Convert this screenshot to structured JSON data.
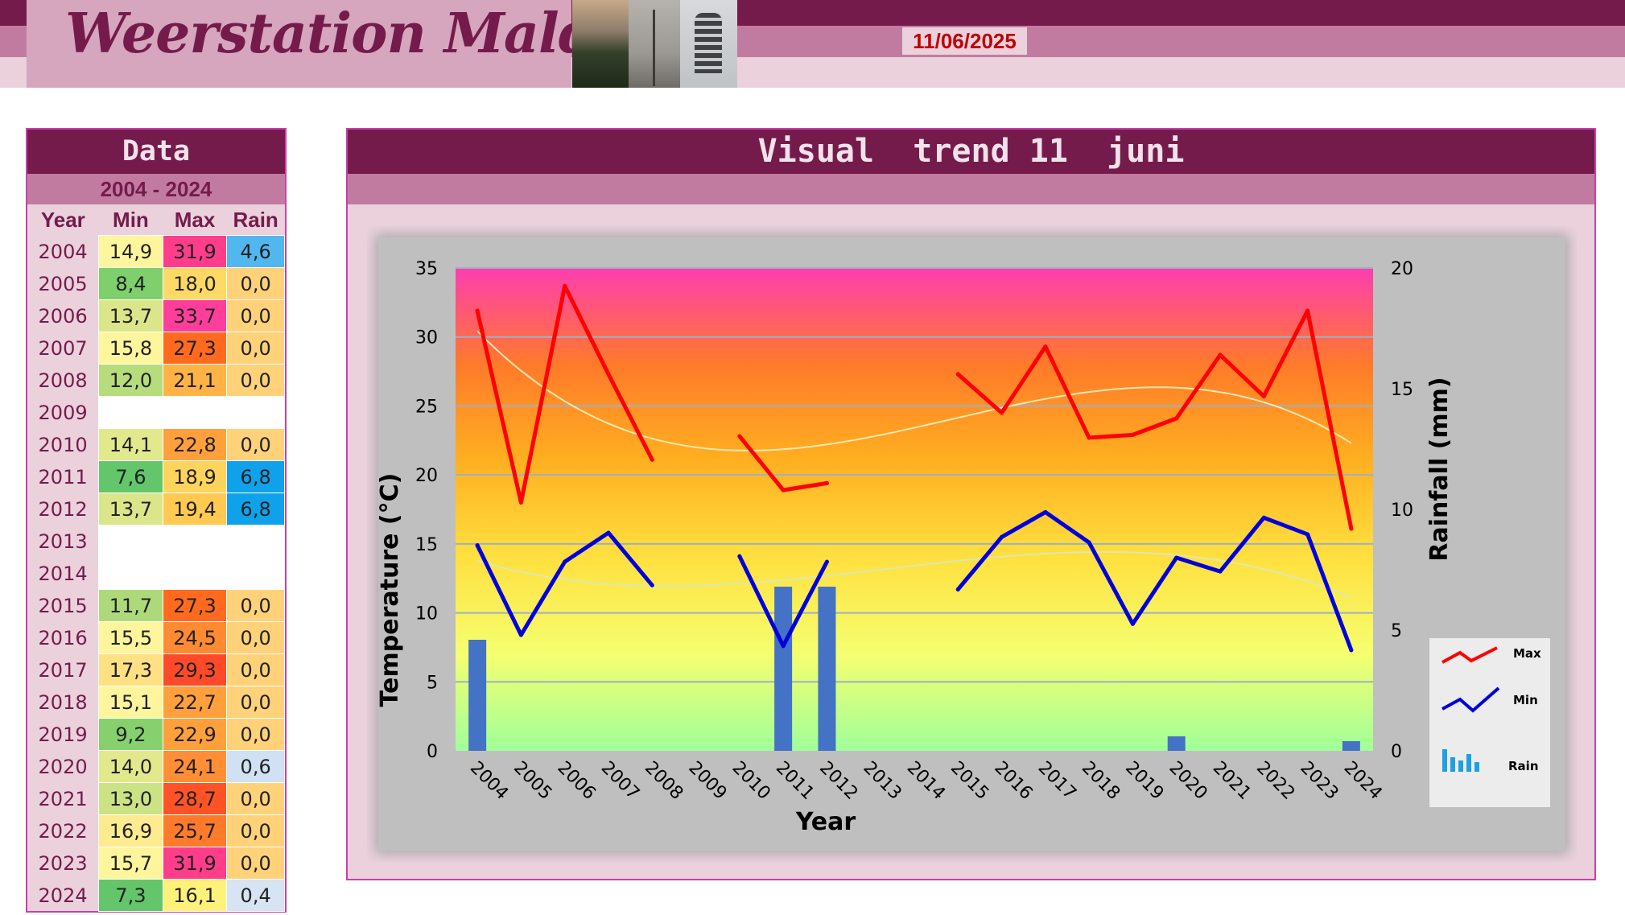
{
  "header": {
    "site_title": "Weerstation Malderen",
    "date": "11/06/2025"
  },
  "data_panel": {
    "title": "Data",
    "range": "2004 - 2024",
    "columns": [
      "Year",
      "Min",
      "Max",
      "Rain"
    ],
    "rows": [
      {
        "year": "2004",
        "min": "14,9",
        "max": "31,9",
        "rain": "4,6",
        "min_color": "#fff59d",
        "max_color": "#ff3d8b",
        "rain_color": "#52b7ee"
      },
      {
        "year": "2005",
        "min": "8,4",
        "max": "18,0",
        "rain": "0,0",
        "min_color": "#7fcf6c",
        "max_color": "#ffd966",
        "rain_color": "#ffd27a"
      },
      {
        "year": "2006",
        "min": "13,7",
        "max": "33,7",
        "rain": "0,0",
        "min_color": "#dbe68a",
        "max_color": "#ff3d9a",
        "rain_color": "#ffd27a"
      },
      {
        "year": "2007",
        "min": "15,8",
        "max": "27,3",
        "rain": "0,0",
        "min_color": "#fff59d",
        "max_color": "#ff6a1f",
        "rain_color": "#ffd27a"
      },
      {
        "year": "2008",
        "min": "12,0",
        "max": "21,1",
        "rain": "0,0",
        "min_color": "#b6dc7c",
        "max_color": "#ffb347",
        "rain_color": "#ffd27a"
      },
      {
        "year": "2009",
        "min": "",
        "max": "",
        "rain": "",
        "min_color": "#ffffff",
        "max_color": "#ffffff",
        "rain_color": "#ffffff"
      },
      {
        "year": "2010",
        "min": "14,1",
        "max": "22,8",
        "rain": "0,0",
        "min_color": "#e2e98d",
        "max_color": "#ffa03c",
        "rain_color": "#ffd27a"
      },
      {
        "year": "2011",
        "min": "7,6",
        "max": "18,9",
        "rain": "6,8",
        "min_color": "#63c66a",
        "max_color": "#ffd45c",
        "rain_color": "#0fa2ea"
      },
      {
        "year": "2012",
        "min": "13,7",
        "max": "19,4",
        "rain": "6,8",
        "min_color": "#dbe68a",
        "max_color": "#ffc952",
        "rain_color": "#0fa2ea"
      },
      {
        "year": "2013",
        "min": "",
        "max": "",
        "rain": "",
        "min_color": "#ffffff",
        "max_color": "#ffffff",
        "rain_color": "#ffffff"
      },
      {
        "year": "2014",
        "min": "",
        "max": "",
        "rain": "",
        "min_color": "#ffffff",
        "max_color": "#ffffff",
        "rain_color": "#ffffff"
      },
      {
        "year": "2015",
        "min": "11,7",
        "max": "27,3",
        "rain": "0,0",
        "min_color": "#aed97a",
        "max_color": "#ff6a1f",
        "rain_color": "#ffd27a"
      },
      {
        "year": "2016",
        "min": "15,5",
        "max": "24,5",
        "rain": "0,0",
        "min_color": "#fff59d",
        "max_color": "#ff8a32",
        "rain_color": "#ffd27a"
      },
      {
        "year": "2017",
        "min": "17,3",
        "max": "29,3",
        "rain": "0,0",
        "min_color": "#ffe082",
        "max_color": "#ff4a2a",
        "rain_color": "#ffd27a"
      },
      {
        "year": "2018",
        "min": "15,1",
        "max": "22,7",
        "rain": "0,0",
        "min_color": "#fff59d",
        "max_color": "#ffa03c",
        "rain_color": "#ffd27a"
      },
      {
        "year": "2019",
        "min": "9,2",
        "max": "22,9",
        "rain": "0,0",
        "min_color": "#86d16d",
        "max_color": "#ffa03c",
        "rain_color": "#ffd27a"
      },
      {
        "year": "2020",
        "min": "14,0",
        "max": "24,1",
        "rain": "0,6",
        "min_color": "#e2e98d",
        "max_color": "#ff8e35",
        "rain_color": "#cfe1f3"
      },
      {
        "year": "2021",
        "min": "13,0",
        "max": "28,7",
        "rain": "0,0",
        "min_color": "#cbe385",
        "max_color": "#ff5327",
        "rain_color": "#ffd27a"
      },
      {
        "year": "2022",
        "min": "16,9",
        "max": "25,7",
        "rain": "0,0",
        "min_color": "#ffeb8f",
        "max_color": "#ff7a2a",
        "rain_color": "#ffd27a"
      },
      {
        "year": "2023",
        "min": "15,7",
        "max": "31,9",
        "rain": "0,0",
        "min_color": "#fff59d",
        "max_color": "#ff3d8b",
        "rain_color": "#ffd27a"
      },
      {
        "year": "2024",
        "min": "7,3",
        "max": "16,1",
        "rain": "0,4",
        "min_color": "#63c66a",
        "max_color": "#fff27a",
        "rain_color": "#d6e4f3"
      }
    ]
  },
  "chart_panel": {
    "title": "Visual  trend 11  juni"
  },
  "chart_data": {
    "type": "line",
    "xlabel": "Year",
    "ylabel": "Temperature (°C)",
    "y2label": "Rainfall (mm)",
    "ylim": [
      0,
      35
    ],
    "y2lim": [
      0,
      20
    ],
    "yticks": [
      0,
      5,
      10,
      15,
      20,
      25,
      30,
      35
    ],
    "y2ticks": [
      0,
      5,
      10,
      15,
      20
    ],
    "categories": [
      "2004",
      "2005",
      "2006",
      "2007",
      "2008",
      "2009",
      "2010",
      "2011",
      "2012",
      "2013",
      "2014",
      "2015",
      "2016",
      "2017",
      "2018",
      "2019",
      "2020",
      "2021",
      "2022",
      "2023",
      "2024"
    ],
    "series": [
      {
        "name": "Max",
        "type": "line",
        "axis": "left",
        "color": "#ff0000",
        "values": [
          31.9,
          18.0,
          33.7,
          27.3,
          21.1,
          null,
          22.8,
          18.9,
          19.4,
          null,
          null,
          27.3,
          24.5,
          29.3,
          22.7,
          22.9,
          24.1,
          28.7,
          25.7,
          31.9,
          16.1
        ]
      },
      {
        "name": "Min",
        "type": "line",
        "axis": "left",
        "color": "#0000dd",
        "values": [
          14.9,
          8.4,
          13.7,
          15.8,
          12.0,
          null,
          14.1,
          7.6,
          13.7,
          null,
          null,
          11.7,
          15.5,
          17.3,
          15.1,
          9.2,
          14.0,
          13.0,
          16.9,
          15.7,
          7.3
        ]
      },
      {
        "name": "Rain",
        "type": "bar",
        "axis": "right",
        "color": "#4472c4",
        "values": [
          4.6,
          0.0,
          0.0,
          0.0,
          0.0,
          null,
          0.0,
          6.8,
          6.8,
          null,
          null,
          0.0,
          0.0,
          0.0,
          0.0,
          0.0,
          0.6,
          0.0,
          0.0,
          0.0,
          0.4
        ]
      }
    ],
    "trendlines": {
      "show": true,
      "color_max": "#ffe8b0",
      "color_min": "#dde8b0"
    },
    "background_gradient": [
      "#ff3db0",
      "#ff7a2a",
      "#ffb020",
      "#ffe040",
      "#f5ff70",
      "#a0ff9a"
    ],
    "grid": true,
    "legend": {
      "position": "right",
      "entries": [
        "Max",
        "Min",
        "Rain"
      ]
    }
  }
}
